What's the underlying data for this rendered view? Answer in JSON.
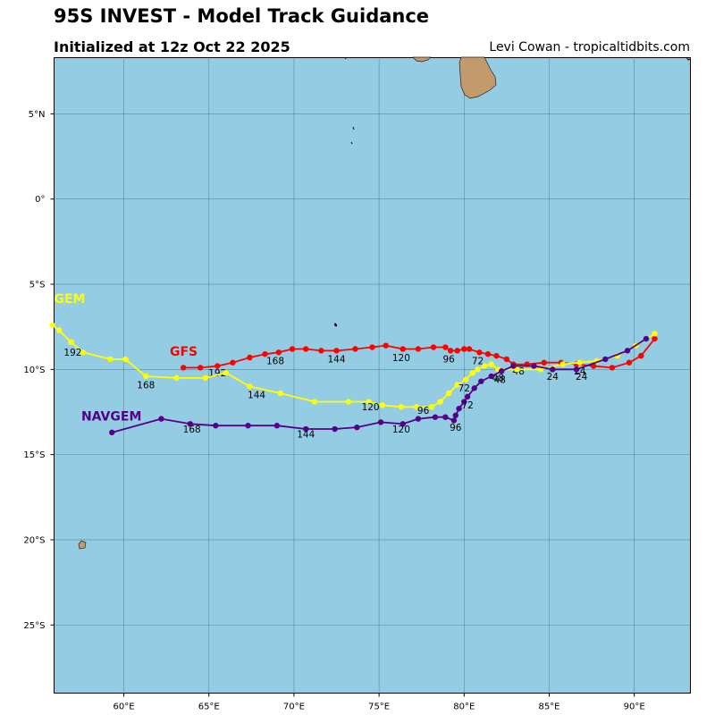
{
  "title": "95S INVEST - Model Track Guidance",
  "subtitle": "Initialized at 12z Oct 22 2025",
  "credit": "Levi Cowan - tropicaltidbits.com",
  "colors": {
    "ocean": "#94cde3",
    "land": "#c39a6c",
    "grid": "#3f6f78",
    "gfs": "#ff0000",
    "gem": "#ffff00",
    "navgem": "#550088"
  },
  "chart_data": {
    "type": "line",
    "xlim": [
      55.9,
      93.3
    ],
    "ylim": [
      -29.0,
      8.3
    ],
    "x_ticks": [
      {
        "value": 60,
        "label": "60°E"
      },
      {
        "value": 65,
        "label": "65°E"
      },
      {
        "value": 70,
        "label": "70°E"
      },
      {
        "value": 75,
        "label": "75°E"
      },
      {
        "value": 80,
        "label": "80°E"
      },
      {
        "value": 85,
        "label": "85°E"
      },
      {
        "value": 90,
        "label": "90°E"
      }
    ],
    "y_ticks": [
      {
        "value": 5,
        "label": "5°N"
      },
      {
        "value": 0,
        "label": "0°"
      },
      {
        "value": -5,
        "label": "5°S"
      },
      {
        "value": -10,
        "label": "10°S"
      },
      {
        "value": -15,
        "label": "15°S"
      },
      {
        "value": -20,
        "label": "20°S"
      },
      {
        "value": -25,
        "label": "25°S"
      }
    ],
    "series": [
      {
        "name": "GFS",
        "color": "#ff0000",
        "name_lon": 62.7,
        "name_lat": -9.2,
        "points": [
          [
            91.2,
            -8.2
          ],
          [
            90.4,
            -9.2
          ],
          [
            89.7,
            -9.6
          ],
          [
            88.7,
            -9.9
          ],
          [
            87.6,
            -9.8
          ],
          [
            86.6,
            -9.7
          ],
          [
            85.7,
            -9.6
          ],
          [
            84.7,
            -9.6
          ],
          [
            83.7,
            -9.7
          ],
          [
            82.9,
            -9.7
          ],
          [
            82.5,
            -9.4
          ],
          [
            81.9,
            -9.2
          ],
          [
            81.4,
            -9.1
          ],
          [
            80.9,
            -9.0
          ],
          [
            80.3,
            -8.8
          ],
          [
            80.0,
            -8.8
          ],
          [
            79.6,
            -8.9
          ],
          [
            79.2,
            -8.9
          ],
          [
            78.9,
            -8.7
          ],
          [
            78.2,
            -8.7
          ],
          [
            77.3,
            -8.8
          ],
          [
            76.4,
            -8.8
          ],
          [
            75.4,
            -8.6
          ],
          [
            74.6,
            -8.7
          ],
          [
            73.6,
            -8.8
          ],
          [
            72.5,
            -8.9
          ],
          [
            71.6,
            -8.9
          ],
          [
            70.7,
            -8.8
          ],
          [
            69.9,
            -8.8
          ],
          [
            69.1,
            -9.0
          ],
          [
            68.3,
            -9.1
          ],
          [
            67.4,
            -9.3
          ],
          [
            66.4,
            -9.6
          ],
          [
            65.5,
            -9.8
          ],
          [
            64.5,
            -9.9
          ],
          [
            63.5,
            -9.9
          ]
        ],
        "labels": [
          {
            "text": "24",
            "lon": 86.8,
            "lat": -10.3
          },
          {
            "text": "48",
            "lon": 83.2,
            "lat": -10.3
          },
          {
            "text": "72",
            "lon": 80.8,
            "lat": -9.7
          },
          {
            "text": "96",
            "lon": 79.1,
            "lat": -9.6
          },
          {
            "text": "120",
            "lon": 76.3,
            "lat": -9.5
          },
          {
            "text": "144",
            "lon": 72.5,
            "lat": -9.6
          },
          {
            "text": "168",
            "lon": 68.9,
            "lat": -9.7
          },
          {
            "text": "192",
            "lon": 65.5,
            "lat": -10.4
          }
        ]
      },
      {
        "name": "GEM",
        "color": "#ffff00",
        "name_lon": 55.9,
        "name_lat": -6.1,
        "points": [
          [
            91.2,
            -7.9
          ],
          [
            90.1,
            -8.6
          ],
          [
            89.0,
            -9.2
          ],
          [
            87.8,
            -9.5
          ],
          [
            86.8,
            -9.6
          ],
          [
            85.8,
            -9.7
          ],
          [
            84.5,
            -10.0
          ],
          [
            83.1,
            -10.0
          ],
          [
            82.0,
            -10.0
          ],
          [
            81.6,
            -9.7
          ],
          [
            81.2,
            -9.8
          ],
          [
            80.8,
            -10.0
          ],
          [
            80.5,
            -10.2
          ],
          [
            80.1,
            -10.6
          ],
          [
            79.6,
            -10.9
          ],
          [
            79.1,
            -11.4
          ],
          [
            78.6,
            -11.9
          ],
          [
            78.1,
            -12.2
          ],
          [
            77.2,
            -12.2
          ],
          [
            76.3,
            -12.2
          ],
          [
            75.2,
            -12.1
          ],
          [
            74.4,
            -11.9
          ],
          [
            73.2,
            -11.9
          ],
          [
            71.2,
            -11.9
          ],
          [
            69.2,
            -11.4
          ],
          [
            67.4,
            -11.0
          ],
          [
            66.0,
            -10.2
          ],
          [
            64.8,
            -10.5
          ],
          [
            63.1,
            -10.5
          ],
          [
            61.3,
            -10.4
          ],
          [
            60.1,
            -9.4
          ],
          [
            59.2,
            -9.4
          ],
          [
            57.6,
            -9.0
          ],
          [
            56.9,
            -8.4
          ],
          [
            56.2,
            -7.7
          ],
          [
            55.8,
            -7.4
          ]
        ],
        "labels": [
          {
            "text": "24",
            "lon": 85.2,
            "lat": -10.6
          },
          {
            "text": "48",
            "lon": 82.0,
            "lat": -10.7
          },
          {
            "text": "72",
            "lon": 80.0,
            "lat": -11.3
          },
          {
            "text": "96",
            "lon": 77.6,
            "lat": -12.6
          },
          {
            "text": "120",
            "lon": 74.5,
            "lat": -12.4
          },
          {
            "text": "144",
            "lon": 67.8,
            "lat": -11.7
          },
          {
            "text": "168",
            "lon": 61.3,
            "lat": -11.1
          },
          {
            "text": "192",
            "lon": 57.0,
            "lat": -9.2
          }
        ]
      },
      {
        "name": "NAVGEM",
        "color": "#550088",
        "name_lon": 57.5,
        "name_lat": -13.0,
        "points": [
          [
            90.7,
            -8.2
          ],
          [
            89.6,
            -8.9
          ],
          [
            88.3,
            -9.4
          ],
          [
            86.6,
            -10.0
          ],
          [
            85.2,
            -10.0
          ],
          [
            84.1,
            -9.8
          ],
          [
            82.9,
            -9.8
          ],
          [
            82.2,
            -10.1
          ],
          [
            81.6,
            -10.4
          ],
          [
            81.0,
            -10.7
          ],
          [
            80.6,
            -11.1
          ],
          [
            80.2,
            -11.6
          ],
          [
            80.0,
            -11.9
          ],
          [
            79.7,
            -12.3
          ],
          [
            79.5,
            -12.7
          ],
          [
            79.4,
            -13.0
          ],
          [
            78.9,
            -12.8
          ],
          [
            78.3,
            -12.8
          ],
          [
            77.3,
            -12.9
          ],
          [
            76.4,
            -13.2
          ],
          [
            75.1,
            -13.1
          ],
          [
            73.7,
            -13.4
          ],
          [
            72.4,
            -13.5
          ],
          [
            70.7,
            -13.5
          ],
          [
            69.0,
            -13.3
          ],
          [
            67.3,
            -13.3
          ],
          [
            65.4,
            -13.3
          ],
          [
            63.9,
            -13.2
          ],
          [
            62.2,
            -12.9
          ],
          [
            59.3,
            -13.7
          ]
        ],
        "labels": [
          {
            "text": "24",
            "lon": 86.9,
            "lat": -10.6
          },
          {
            "text": "48",
            "lon": 82.1,
            "lat": -10.8
          },
          {
            "text": "72",
            "lon": 80.2,
            "lat": -12.3
          },
          {
            "text": "96",
            "lon": 79.5,
            "lat": -13.6
          },
          {
            "text": "120",
            "lon": 76.3,
            "lat": -13.7
          },
          {
            "text": "144",
            "lon": 70.7,
            "lat": -14.0
          },
          {
            "text": "168",
            "lon": 64.0,
            "lat": -13.7
          }
        ]
      }
    ]
  }
}
